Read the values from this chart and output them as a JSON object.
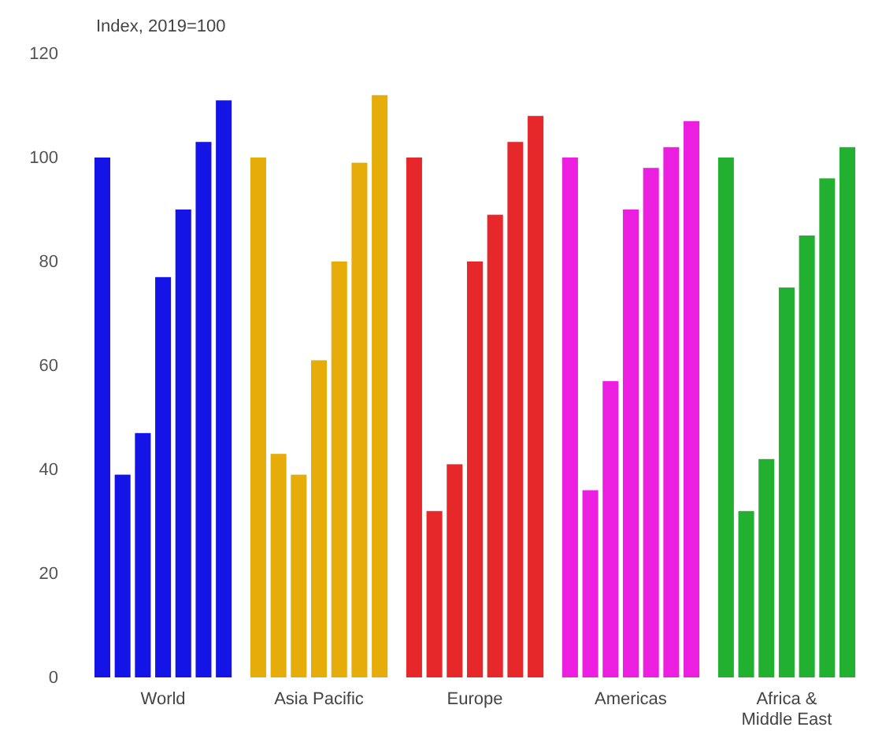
{
  "chart_data": {
    "type": "bar",
    "subtitle": "Index, 2019=100",
    "categories": [
      "World",
      "Asia Pacific",
      "Europe",
      "Americas",
      "Africa & Middle East"
    ],
    "series": [
      {
        "colors": [
          "#1414e6",
          "#e6ac0a",
          "#e6282a",
          "#ec1ee0",
          "#22b030"
        ],
        "values": [
          100,
          100,
          100,
          100,
          100
        ]
      },
      {
        "colors": [
          "#1414e6",
          "#e6ac0a",
          "#e6282a",
          "#ec1ee0",
          "#22b030"
        ],
        "values": [
          39,
          43,
          32,
          36,
          32
        ]
      },
      {
        "colors": [
          "#1414e6",
          "#e6ac0a",
          "#e6282a",
          "#ec1ee0",
          "#22b030"
        ],
        "values": [
          47,
          39,
          41,
          57,
          42
        ]
      },
      {
        "colors": [
          "#1414e6",
          "#e6ac0a",
          "#e6282a",
          "#ec1ee0",
          "#22b030"
        ],
        "values": [
          77,
          61,
          80,
          90,
          75
        ]
      },
      {
        "colors": [
          "#1414e6",
          "#e6ac0a",
          "#e6282a",
          "#ec1ee0",
          "#22b030"
        ],
        "values": [
          90,
          80,
          89,
          98,
          85
        ]
      },
      {
        "colors": [
          "#1414e6",
          "#e6ac0a",
          "#e6282a",
          "#ec1ee0",
          "#22b030"
        ],
        "values": [
          103,
          99,
          103,
          102,
          96
        ]
      },
      {
        "colors": [
          "#1414e6",
          "#e6ac0a",
          "#e6282a",
          "#ec1ee0",
          "#22b030"
        ],
        "values": [
          111,
          112,
          108,
          107,
          102
        ]
      }
    ],
    "ylim": [
      0,
      120
    ],
    "yticks": [
      0,
      20,
      40,
      60,
      80,
      100,
      120
    ]
  }
}
